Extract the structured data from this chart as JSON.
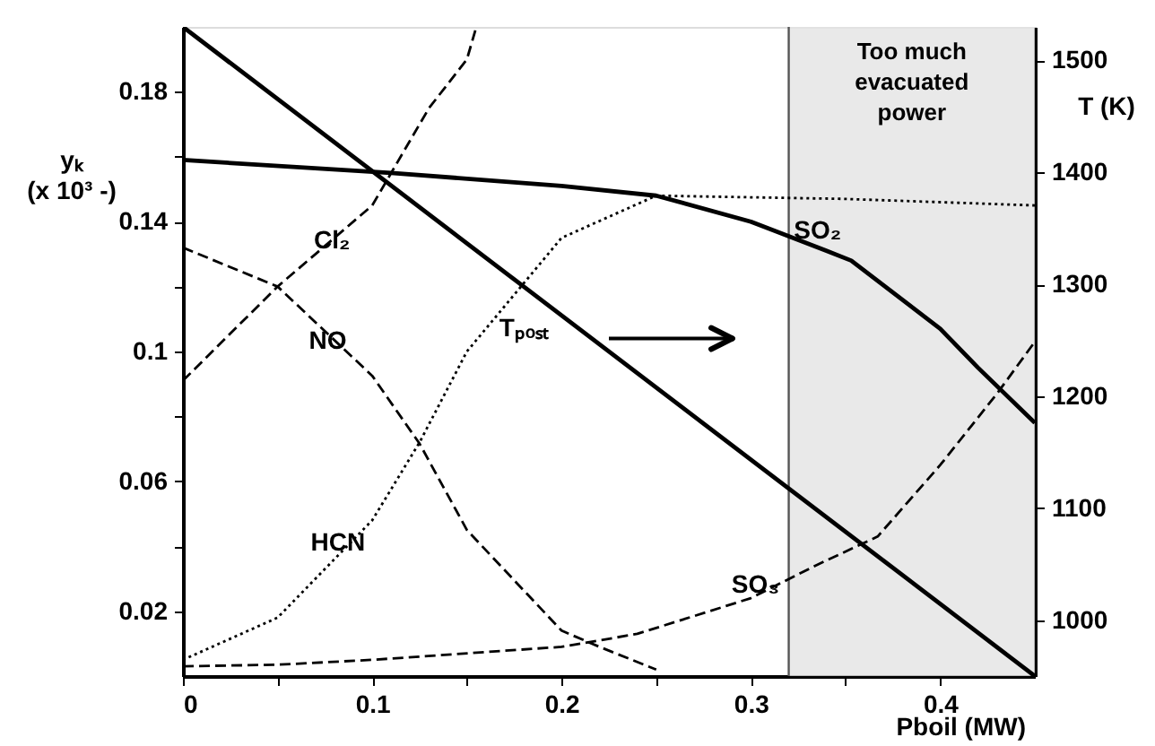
{
  "chart_data": {
    "type": "line",
    "xlabel": "Pboil (MW)",
    "ylabel": "yₖ (x 10³ -)",
    "y2label": "T (K)",
    "xlim": [
      0,
      0.45
    ],
    "xticks": [
      0,
      {
        "value": 0.05,
        "label": null
      },
      0.1,
      {
        "value": 0.15,
        "label": null
      },
      0.2,
      {
        "value": 0.25,
        "label": null
      },
      0.3,
      {
        "value": 0.35,
        "label": null
      },
      0.4
    ],
    "ylim": [
      0,
      0.2
    ],
    "yticks": [
      0.02,
      {
        "value": 0.04,
        "label": null
      },
      0.06,
      {
        "value": 0.08,
        "label": null
      },
      0.1,
      {
        "value": 0.12,
        "label": null
      },
      0.14,
      {
        "value": 0.16,
        "label": null
      },
      0.18
    ],
    "y2lim": [
      950,
      1530
    ],
    "y2ticks": [
      1000,
      1100,
      1200,
      1300,
      1400,
      1500
    ],
    "series": [
      {
        "name": "SO₂",
        "color": "#000000",
        "line_style": "solid",
        "x": [
          0,
          0.11,
          0.2,
          0.25,
          0.3,
          0.34,
          0.353,
          0.4,
          0.42,
          0.45
        ],
        "values": [
          0.159,
          0.155,
          0.151,
          0.148,
          0.14,
          0.131,
          0.128,
          0.107,
          0.095,
          0.078
        ]
      },
      {
        "name": "SO₃",
        "color": "#000000",
        "line_style": "dashed",
        "x": [
          0,
          0.05,
          0.1,
          0.2,
          0.24,
          0.3,
          0.334,
          0.367,
          0.4,
          0.43,
          0.45
        ],
        "values": [
          0.003,
          0.0035,
          0.005,
          0.009,
          0.013,
          0.024,
          0.034,
          0.043,
          0.065,
          0.087,
          0.103
        ]
      },
      {
        "name": "Cl₂",
        "color": "#000000",
        "line_style": "dashed",
        "x": [
          0,
          0.05,
          0.1,
          0.11,
          0.13,
          0.15,
          0.155
        ],
        "values": [
          0.091,
          0.12,
          0.145,
          0.155,
          0.175,
          0.19,
          0.2
        ]
      },
      {
        "name": "NO",
        "color": "#000000",
        "line_style": "dashed",
        "x": [
          0,
          0.05,
          0.1,
          0.125,
          0.15,
          0.2,
          0.22,
          0.25
        ],
        "values": [
          0.132,
          0.12,
          0.0925,
          0.0716,
          0.045,
          0.014,
          0.009,
          0.002
        ]
      },
      {
        "name": "HCN",
        "color": "#000000",
        "line_style": "dotted",
        "x": [
          0,
          0.05,
          0.1,
          0.125,
          0.15,
          0.2,
          0.25,
          0.35,
          0.45
        ],
        "values": [
          0.005,
          0.018,
          0.048,
          0.072,
          0.1,
          0.135,
          0.148,
          0.147,
          0.145
        ]
      },
      {
        "name": "Tₚₒₛₜ",
        "color": "#000000",
        "line_style": "solid",
        "axis": "y2",
        "x": [
          0,
          0.45
        ],
        "values": [
          1530,
          950
        ]
      }
    ],
    "ref_lines": [
      {
        "axis": "x",
        "value": 0.32,
        "color": "#555555"
      }
    ],
    "bands": [
      {
        "axis": "x",
        "from": 0.32,
        "to": 0.45,
        "label": "Too much evacuated power",
        "color": "#e4e4e4"
      }
    ],
    "grid": false
  }
}
